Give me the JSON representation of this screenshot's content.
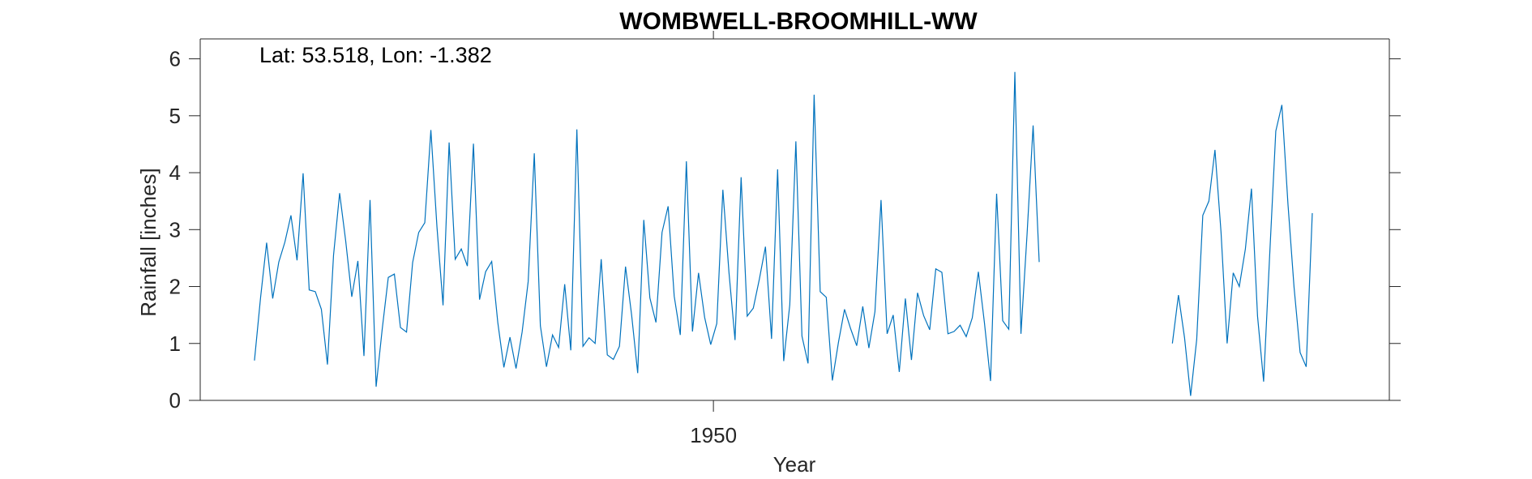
{
  "chart_data": {
    "type": "line",
    "title": "WOMBWELL-BROOMHILL-WW",
    "annotation": "Lat: 53.518, Lon: -1.382",
    "xlabel": "Year",
    "ylabel": "Rainfall [inches]",
    "x_ticks": [
      {
        "value": 1950,
        "label": "1950"
      }
    ],
    "y_ticks": [
      {
        "value": 0,
        "label": "0"
      },
      {
        "value": 1,
        "label": "1"
      },
      {
        "value": 2,
        "label": "2"
      },
      {
        "value": 3,
        "label": "3"
      },
      {
        "value": 4,
        "label": "4"
      },
      {
        "value": 5,
        "label": "5"
      },
      {
        "value": 6,
        "label": "6"
      }
    ],
    "xlim": [
      1937.7,
      1966.2
    ],
    "ylim": [
      0,
      6.35
    ],
    "grid": false,
    "legend": "none",
    "colors": {
      "series": "#0072BD",
      "axes": "#262626"
    },
    "series": [
      {
        "segments": [
          {
            "x_start": 1939.0,
            "x_step": 0.1458,
            "values": [
              0.7,
              1.8,
              2.77,
              1.79,
              2.43,
              2.78,
              3.25,
              2.46,
              3.99,
              1.94,
              1.91,
              1.6,
              0.63,
              2.55,
              3.64,
              2.8,
              1.82,
              2.45,
              0.78,
              3.52,
              0.24,
              1.25,
              2.16,
              2.22,
              1.28,
              1.2,
              2.42,
              2.95,
              3.12,
              4.75,
              3.05,
              1.67,
              4.53,
              2.48,
              2.66,
              2.36,
              4.51,
              1.77,
              2.26,
              2.44,
              1.37,
              0.58,
              1.11,
              0.56,
              1.2,
              2.09,
              4.34,
              1.31,
              0.59,
              1.15,
              0.93,
              2.04,
              0.88,
              4.76,
              0.95,
              1.1,
              1.0,
              2.48,
              0.8,
              0.72,
              0.95,
              2.35,
              1.5,
              0.48,
              3.17,
              1.8,
              1.37,
              2.95,
              3.41,
              1.83,
              1.15,
              4.2,
              1.21,
              2.24,
              1.46,
              0.98,
              1.35,
              3.7,
              2.25,
              1.06,
              3.92,
              1.48,
              1.62,
              2.13,
              2.7,
              1.08,
              4.06,
              0.69,
              1.68,
              4.55,
              1.13,
              0.65,
              5.37,
              1.91,
              1.81,
              0.35,
              1.02,
              1.6,
              1.26,
              0.96,
              1.65,
              0.92,
              1.56,
              3.52,
              1.17,
              1.5,
              0.5,
              1.79,
              0.71,
              1.89,
              1.49,
              1.24,
              2.31,
              2.25,
              1.17,
              1.21,
              1.32,
              1.12,
              1.45,
              2.26,
              1.36,
              0.34,
              3.63,
              1.4,
              1.25,
              5.77,
              1.17,
              2.91,
              4.83,
              2.43
            ]
          },
          {
            "x_start": 1961.0,
            "x_step": 0.1458,
            "values": [
              1.0,
              1.85,
              1.1,
              0.08,
              1.07,
              3.25,
              3.5,
              4.4,
              2.95,
              1.0,
              2.24,
              2.0,
              2.66,
              3.72,
              1.48,
              0.33,
              2.56,
              4.73,
              5.19,
              3.45,
              1.99,
              0.84,
              0.59,
              3.29
            ]
          }
        ]
      }
    ]
  }
}
